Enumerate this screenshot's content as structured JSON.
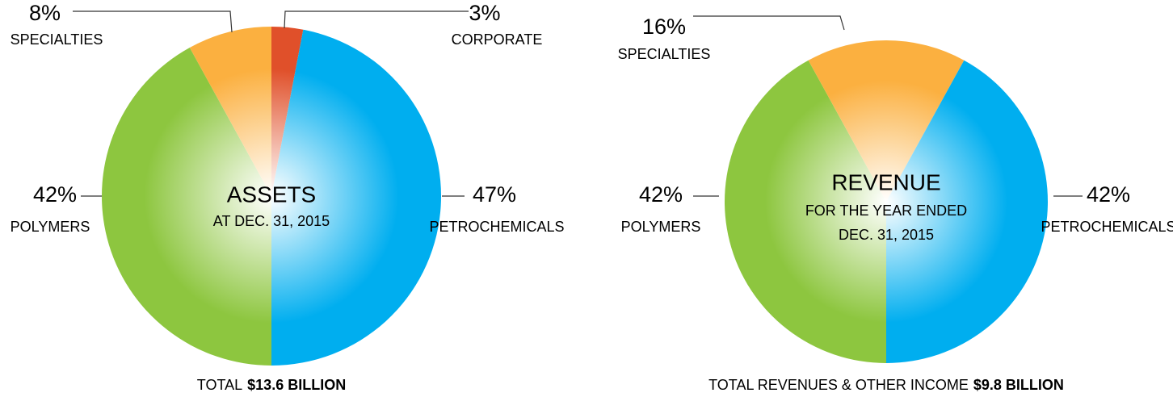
{
  "chart_data": [
    {
      "type": "pie",
      "center_text": [
        "ASSETS",
        "AT DEC. 31, 2015"
      ],
      "categories": [
        "POLYMERS",
        "SPECIALTIES",
        "CORPORATE",
        "PETROCHEMICALS"
      ],
      "values": [
        42,
        8,
        3,
        47
      ],
      "value_labels": [
        "42%",
        "8%",
        "3%",
        "47%"
      ],
      "colors": [
        "#8dc63f",
        "#fbb040",
        "#e0502a",
        "#00aeef"
      ],
      "footer_label": "TOTAL",
      "footer_value": "$13.6 BILLION"
    },
    {
      "type": "pie",
      "center_text": [
        "REVENUE",
        "FOR THE YEAR ENDED",
        "DEC. 31, 2015"
      ],
      "categories": [
        "POLYMERS",
        "SPECIALTIES",
        "PETROCHEMICALS"
      ],
      "values": [
        42,
        16,
        42
      ],
      "value_labels": [
        "42%",
        "16%",
        "42%"
      ],
      "colors": [
        "#8dc63f",
        "#fbb040",
        "#00aeef"
      ],
      "footer_label": "TOTAL REVENUES & OTHER INCOME",
      "footer_value": "$9.8 BILLION"
    }
  ]
}
